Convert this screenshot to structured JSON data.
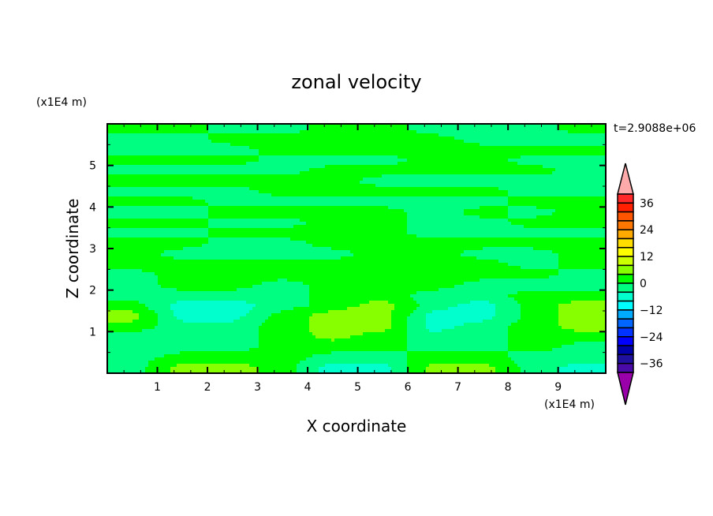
{
  "chart_data": {
    "type": "heatmap",
    "subtype": "filled-contour",
    "title": "zonal velocity",
    "xlabel": "X coordinate",
    "ylabel": "Z coordinate",
    "x_unit_label": "(x1E4 m)",
    "y_unit_label": "(x1E4 m)",
    "time_label": "t=2.9088e+06",
    "xlim": [
      0,
      9.95
    ],
    "ylim": [
      0,
      6
    ],
    "x_ticks": [
      1,
      2,
      3,
      4,
      5,
      6,
      7,
      8,
      9
    ],
    "y_ticks": [
      1,
      2,
      3,
      4,
      5
    ],
    "x_tick_labels": [
      "1",
      "2",
      "3",
      "4",
      "5",
      "6",
      "7",
      "8",
      "9"
    ],
    "y_tick_labels": [
      "1",
      "2",
      "3",
      "4",
      "5"
    ],
    "colorbar": {
      "levels_min": -40,
      "levels_max": 40,
      "level_step": 4,
      "tick_labels": [
        "36",
        "24",
        "12",
        "0",
        "−12",
        "−24",
        "−36"
      ],
      "tick_values": [
        36,
        24,
        12,
        0,
        -12,
        -24,
        -36
      ],
      "over_color": "#ffaaaa",
      "under_color": "#9900aa",
      "colors_high_to_low": [
        "#ff2828",
        "#ff2000",
        "#ff5500",
        "#ff7700",
        "#ffaa00",
        "#ffdd00",
        "#ffff00",
        "#ccff00",
        "#88ff00",
        "#00ff00",
        "#00ff80",
        "#00ffcc",
        "#00ffff",
        "#00aaff",
        "#0066ff",
        "#0033ff",
        "#0000ff",
        "#0000aa",
        "#2010a0",
        "#4a0aa8"
      ]
    },
    "grid_x": [
      0.5,
      1.5,
      2.5,
      3.5,
      4.5,
      5.5,
      6.5,
      7.5,
      8.5,
      9.5
    ],
    "grid_y_top_to_bottom": [
      5.875,
      5.625,
      5.375,
      5.125,
      4.875,
      4.625,
      4.375,
      4.125,
      3.875,
      3.625,
      3.375,
      3.125,
      2.875,
      2.625,
      2.375,
      2.125,
      1.875,
      1.625,
      1.375,
      1.125,
      0.875,
      0.625,
      0.375,
      0.125
    ],
    "approx_values": [
      [
        2,
        2,
        -2,
        -2,
        2,
        2,
        -2,
        -2,
        -2,
        2
      ],
      [
        -2,
        -2,
        2,
        2,
        2,
        2,
        2,
        -2,
        -2,
        -2
      ],
      [
        -2,
        -2,
        -2,
        2,
        2,
        2,
        2,
        2,
        2,
        2
      ],
      [
        2,
        2,
        2,
        -2,
        -2,
        -2,
        2,
        2,
        -2,
        -2
      ],
      [
        -2,
        -2,
        -2,
        -2,
        2,
        2,
        2,
        2,
        2,
        -2
      ],
      [
        2,
        2,
        2,
        2,
        2,
        -2,
        -2,
        -2,
        -2,
        -2
      ],
      [
        -2,
        -2,
        -2,
        2,
        2,
        2,
        2,
        2,
        -2,
        -2
      ],
      [
        2,
        2,
        -2,
        -2,
        -2,
        -2,
        -2,
        -2,
        2,
        2
      ],
      [
        -2,
        -2,
        2,
        2,
        2,
        2,
        -2,
        2,
        -2,
        2
      ],
      [
        2,
        2,
        -2,
        -2,
        2,
        2,
        -2,
        -2,
        2,
        2
      ],
      [
        -2,
        -2,
        2,
        2,
        2,
        2,
        -2,
        -2,
        -2,
        -2
      ],
      [
        2,
        2,
        -2,
        -2,
        2,
        2,
        2,
        2,
        2,
        2
      ],
      [
        2,
        -2,
        -2,
        -2,
        -2,
        2,
        2,
        -2,
        -2,
        2
      ],
      [
        2,
        2,
        2,
        2,
        2,
        2,
        2,
        2,
        -2,
        2
      ],
      [
        -2,
        2,
        2,
        2,
        2,
        2,
        2,
        2,
        2,
        -2
      ],
      [
        -2,
        2,
        2,
        -2,
        2,
        2,
        2,
        -2,
        -2,
        -2
      ],
      [
        -2,
        -2,
        -2,
        -2,
        2,
        2,
        -2,
        -2,
        2,
        2
      ],
      [
        2,
        -6,
        -6,
        -2,
        2,
        6,
        -2,
        -6,
        2,
        6
      ],
      [
        6,
        -6,
        -6,
        2,
        6,
        6,
        -6,
        -6,
        2,
        6
      ],
      [
        2,
        -2,
        -2,
        2,
        6,
        6,
        -6,
        -2,
        2,
        6
      ],
      [
        -2,
        -2,
        -2,
        2,
        5,
        2,
        -2,
        -2,
        2,
        2
      ],
      [
        -2,
        -2,
        -2,
        2,
        2,
        2,
        -2,
        -2,
        2,
        -2
      ],
      [
        -2,
        2,
        2,
        2,
        -2,
        -2,
        2,
        2,
        -2,
        -2
      ],
      [
        -2,
        6,
        6,
        2,
        -6,
        -6,
        6,
        6,
        -2,
        -6
      ]
    ]
  }
}
